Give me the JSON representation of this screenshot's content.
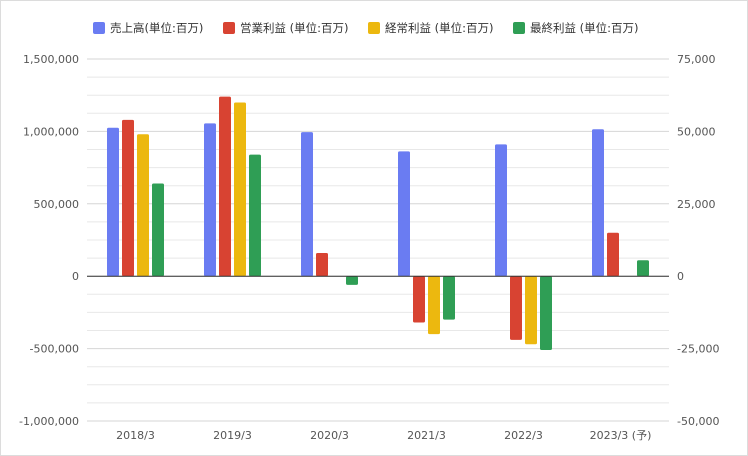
{
  "chart_data": {
    "type": "bar",
    "categories": [
      "2018/3",
      "2019/3",
      "2020/3",
      "2021/3",
      "2022/3",
      "2023/3 (予)"
    ],
    "series": [
      {
        "name": "売上高(単位:百万)",
        "axis": "left",
        "color": "#6a7cf2",
        "values": [
          1025000,
          1055000,
          995000,
          862000,
          910000,
          1015000
        ]
      },
      {
        "name": "営業利益 (単位:百万)",
        "axis": "right",
        "color": "#d84332",
        "values": [
          54000,
          62000,
          8000,
          -16000,
          -22000,
          15000
        ]
      },
      {
        "name": "経常利益 (単位:百万)",
        "axis": "right",
        "color": "#ecb80f",
        "values": [
          49000,
          60000,
          0,
          -20000,
          -23500,
          0
        ]
      },
      {
        "name": "最終利益 (単位:百万)",
        "axis": "right",
        "color": "#2f9e55",
        "values": [
          32000,
          42000,
          -3000,
          -15000,
          -25500,
          5500
        ]
      }
    ],
    "y_left": {
      "ylim": [
        -1000000,
        1500000
      ],
      "tick_values": [
        1500000,
        1000000,
        500000,
        0,
        -500000,
        -1000000
      ],
      "tick_labels": [
        "1,500,000",
        "1,000,000",
        "500,000",
        "0",
        "-500,000",
        "-1,000,000"
      ]
    },
    "y_right": {
      "ylim": [
        -50000,
        75000
      ],
      "tick_values": [
        75000,
        50000,
        25000,
        0,
        -25000,
        -50000
      ],
      "tick_labels": [
        "75,000",
        "50,000",
        "25,000",
        "0",
        "-25,000",
        "-50,000"
      ]
    },
    "legend_position": "top",
    "grid": true,
    "colors": {
      "gridline": "#e8e8e8",
      "zeroline": "#333333",
      "frame": "#dcdcdc"
    }
  }
}
